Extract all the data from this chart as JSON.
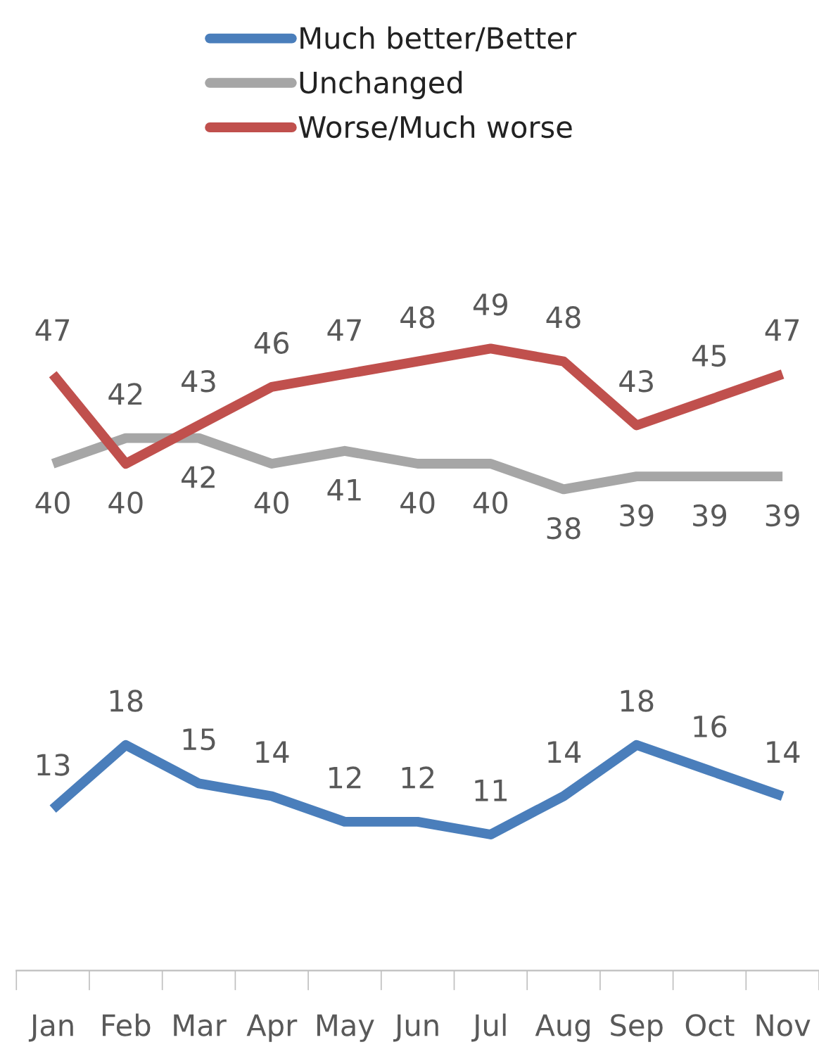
{
  "chart_data": {
    "type": "line",
    "categories": [
      "Jan",
      "Feb",
      "Mar",
      "Apr",
      "May",
      "Jun",
      "Jul",
      "Aug",
      "Sep",
      "Oct",
      "Nov"
    ],
    "series": [
      {
        "name": "Much better/Better",
        "color": "#4a7ebb",
        "values": [
          13,
          18,
          15,
          14,
          12,
          12,
          11,
          14,
          18,
          16,
          14
        ]
      },
      {
        "name": "Unchanged",
        "color": "#a6a6a6",
        "values": [
          40,
          42,
          42,
          40,
          41,
          40,
          40,
          38,
          39,
          39,
          39
        ]
      },
      {
        "name": "Worse/Much worse",
        "color": "#c0504d",
        "values": [
          47,
          40,
          43,
          46,
          47,
          48,
          49,
          48,
          43,
          45,
          47
        ]
      }
    ],
    "data_labels": true,
    "legend": "top",
    "grid": false,
    "marker": "none",
    "line_style": "solid"
  }
}
